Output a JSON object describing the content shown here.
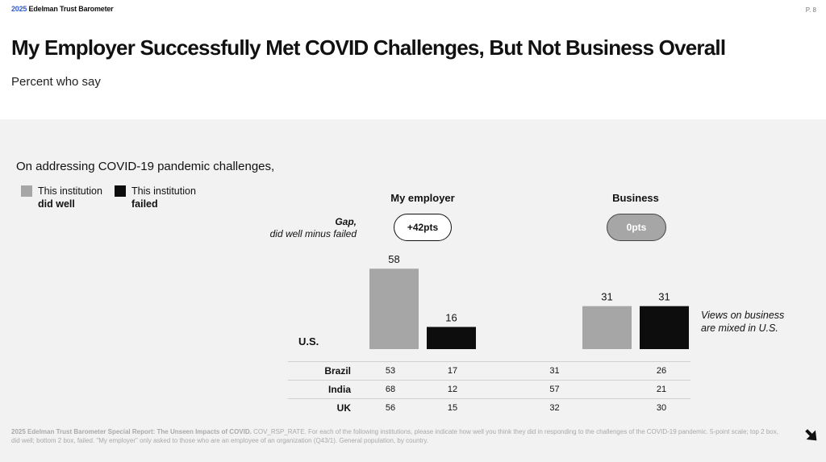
{
  "header": {
    "brand_year": "2025",
    "brand_name": "Edelman Trust Barometer",
    "page": "P. 8"
  },
  "title": "My Employer Successfully Met COVID Challenges, But Not Business Overall",
  "subtitle": "Percent who say",
  "intro": "On addressing COVID-19 pandemic challenges,",
  "legend": [
    {
      "line1": "This institution",
      "line2": "did well",
      "color": "#a6a6a6"
    },
    {
      "line1": "This institution",
      "line2": "failed",
      "color": "#0d0d0d"
    }
  ],
  "gap_label": {
    "line1": "Gap,",
    "line2": "did well minus failed"
  },
  "note": "Views on business are mixed in U.S.",
  "chart_data": {
    "type": "bar",
    "categories": [
      "My employer",
      "Business"
    ],
    "row_label": "U.S.",
    "series": [
      {
        "name": "This institution did well",
        "values": [
          58,
          31
        ],
        "color": "#a6a6a6"
      },
      {
        "name": "This institution failed",
        "values": [
          16,
          31
        ],
        "color": "#0d0d0d"
      }
    ],
    "gaps": [
      "+42pts",
      "0pts"
    ],
    "other_countries": [
      {
        "country": "Brazil",
        "values": [
          53,
          17,
          31,
          26
        ]
      },
      {
        "country": "India",
        "values": [
          68,
          12,
          57,
          21
        ]
      },
      {
        "country": "UK",
        "values": [
          56,
          15,
          32,
          30
        ]
      }
    ]
  },
  "footnote": {
    "bold": "2025 Edelman Trust Barometer Special Report: The Unseen Impacts of COVID.",
    "text": " COV_RSP_RATE. For each of the following institutions, please indicate how well you think they did in responding to the challenges of the COVID-19 pandemic. 5-point scale; top 2 box, did well; bottom 2 box, failed. \"My employer\" only asked to those who are an employee of an organization (Q43/1). General population, by country."
  }
}
